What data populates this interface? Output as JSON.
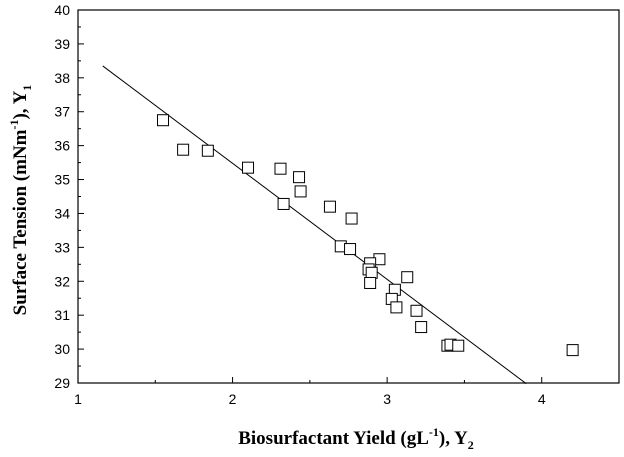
{
  "chart_data": {
    "type": "scatter",
    "xlabel": {
      "main": "Biosurfactant Yield (gL",
      "sup": "-1",
      "tail": "), Y",
      "sub": "2"
    },
    "ylabel": {
      "main": "Surface Tension (mNm",
      "sup": "-1",
      "tail": "), Y",
      "sub": "1"
    },
    "xlim": [
      1,
      4.5
    ],
    "ylim": [
      29,
      40
    ],
    "xticks": [
      1,
      2,
      3,
      4
    ],
    "yticks": [
      29,
      30,
      31,
      32,
      33,
      34,
      35,
      36,
      37,
      38,
      39,
      40
    ],
    "grid": false,
    "marker": "open-square",
    "points": [
      {
        "x": 1.55,
        "y": 36.75
      },
      {
        "x": 1.68,
        "y": 35.88
      },
      {
        "x": 1.84,
        "y": 35.85
      },
      {
        "x": 2.1,
        "y": 35.35
      },
      {
        "x": 2.31,
        "y": 35.32
      },
      {
        "x": 2.33,
        "y": 34.28
      },
      {
        "x": 2.43,
        "y": 35.07
      },
      {
        "x": 2.44,
        "y": 34.65
      },
      {
        "x": 2.63,
        "y": 34.2
      },
      {
        "x": 2.77,
        "y": 33.85
      },
      {
        "x": 2.7,
        "y": 33.03
      },
      {
        "x": 2.76,
        "y": 32.95
      },
      {
        "x": 2.95,
        "y": 32.65
      },
      {
        "x": 2.89,
        "y": 32.53
      },
      {
        "x": 2.88,
        "y": 32.35
      },
      {
        "x": 2.9,
        "y": 32.25
      },
      {
        "x": 3.13,
        "y": 32.12
      },
      {
        "x": 2.89,
        "y": 31.95
      },
      {
        "x": 3.05,
        "y": 31.75
      },
      {
        "x": 3.03,
        "y": 31.48
      },
      {
        "x": 3.06,
        "y": 31.23
      },
      {
        "x": 3.19,
        "y": 31.13
      },
      {
        "x": 3.22,
        "y": 30.65
      },
      {
        "x": 3.39,
        "y": 30.1
      },
      {
        "x": 3.41,
        "y": 30.13
      },
      {
        "x": 3.46,
        "y": 30.1
      },
      {
        "x": 4.2,
        "y": 29.97
      }
    ],
    "fit_line": {
      "x": [
        1.16,
        3.9
      ],
      "y": [
        38.35,
        28.98
      ]
    }
  }
}
